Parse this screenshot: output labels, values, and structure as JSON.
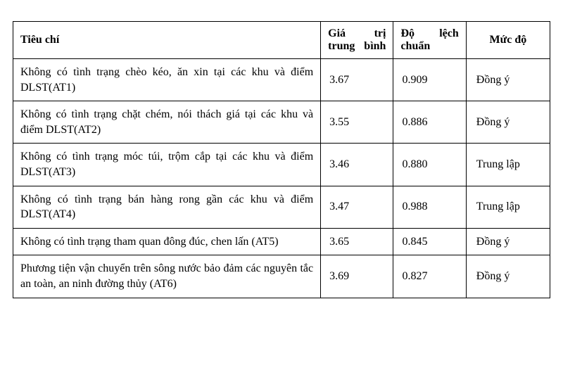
{
  "table": {
    "type": "table",
    "border_color": "#000000",
    "background_color": "#ffffff",
    "font_family": "Times New Roman",
    "header_font_weight": "bold",
    "body_font_size": 16,
    "columns": [
      {
        "key": "criteria",
        "label": "Tiêu chí",
        "width_pct": 55,
        "align": "left"
      },
      {
        "key": "mean",
        "label_line1a": "Giá",
        "label_line1b": "trị",
        "label_line2": "trung bình",
        "width_pct": 13,
        "align": "left"
      },
      {
        "key": "sd",
        "label_line1a": "Độ",
        "label_line1b": "lệch",
        "label_line2": "chuẩn",
        "width_pct": 13,
        "align": "left"
      },
      {
        "key": "level",
        "label": "Mức độ",
        "width_pct": 15,
        "align": "center"
      }
    ],
    "rows": [
      {
        "criteria": "Không có tình trạng chèo kéo, ăn xin tại các khu và điểm DLST(AT1)",
        "mean": "3.67",
        "sd": "0.909",
        "level": "Đồng ý"
      },
      {
        "criteria": "Không có tình trạng chặt chém, nói thách giá tại các khu và điểm DLST(AT2)",
        "mean": "3.55",
        "sd": "0.886",
        "level": "Đồng ý"
      },
      {
        "criteria": "Không có tình trạng móc túi, trộm cắp tại các khu và điểm DLST(AT3)",
        "mean": "3.46",
        "sd": "0.880",
        "level": "Trung lập"
      },
      {
        "criteria": "Không có tình trạng bán hàng rong gần các khu và điểm DLST(AT4)",
        "mean": "3.47",
        "sd": "0.988",
        "level": "Trung lập"
      },
      {
        "criteria": "Không có tình trạng tham quan đông đúc, chen lấn (AT5)",
        "mean": "3.65",
        "sd": "0.845",
        "level": "Đồng ý"
      },
      {
        "criteria": "Phương tiện vận chuyển trên sông nước bảo đảm các nguyên tắc an toàn, an ninh đường thủy (AT6)",
        "mean": "3.69",
        "sd": "0.827",
        "level": "Đồng ý"
      }
    ]
  }
}
